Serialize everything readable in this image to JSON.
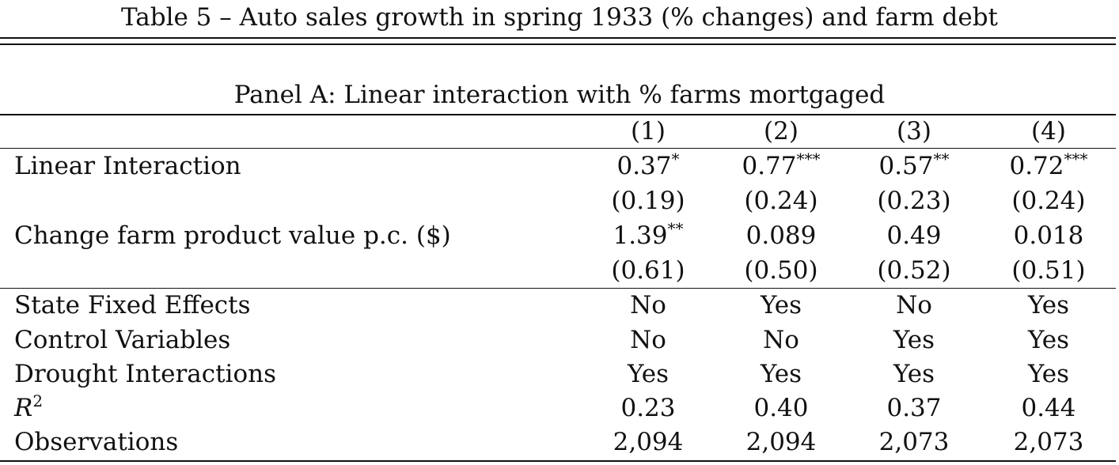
{
  "table": {
    "title": "Table 5 – Auto sales growth in spring 1933 (% changes) and farm debt",
    "panel_title": "Panel A: Linear interaction with % farms mortgaged",
    "columns": [
      "(1)",
      "(2)",
      "(3)",
      "(4)"
    ],
    "rows": [
      {
        "label": "Linear Interaction",
        "values": [
          "0.37",
          "0.77",
          "0.57",
          "0.72"
        ],
        "stars": [
          "*",
          "***",
          "**",
          "***"
        ]
      },
      {
        "label": "",
        "values": [
          "(0.19)",
          "(0.24)",
          "(0.23)",
          "(0.24)"
        ],
        "stars": [
          "",
          "",
          "",
          ""
        ]
      },
      {
        "label": "Change farm product value p.c. ($)",
        "values": [
          "1.39",
          "0.089",
          "0.49",
          "0.018"
        ],
        "stars": [
          "**",
          "",
          "",
          ""
        ]
      },
      {
        "label": "",
        "values": [
          "(0.61)",
          "(0.50)",
          "(0.52)",
          "(0.51)"
        ],
        "stars": [
          "",
          "",
          "",
          ""
        ]
      },
      {
        "label": "State Fixed Effects",
        "values": [
          "No",
          "Yes",
          "No",
          "Yes"
        ],
        "stars": [
          "",
          "",
          "",
          ""
        ]
      },
      {
        "label": "Control Variables",
        "values": [
          "No",
          "No",
          "Yes",
          "Yes"
        ],
        "stars": [
          "",
          "",
          "",
          ""
        ]
      },
      {
        "label": "Drought Interactions",
        "values": [
          "Yes",
          "Yes",
          "Yes",
          "Yes"
        ],
        "stars": [
          "",
          "",
          "",
          ""
        ]
      },
      {
        "label": "R",
        "label_sup": "2",
        "values": [
          "0.23",
          "0.40",
          "0.37",
          "0.44"
        ],
        "stars": [
          "",
          "",
          "",
          ""
        ]
      },
      {
        "label": "Observations",
        "values": [
          "2,094",
          "2,094",
          "2,073",
          "2,073"
        ],
        "stars": [
          "",
          "",
          "",
          ""
        ]
      }
    ]
  }
}
